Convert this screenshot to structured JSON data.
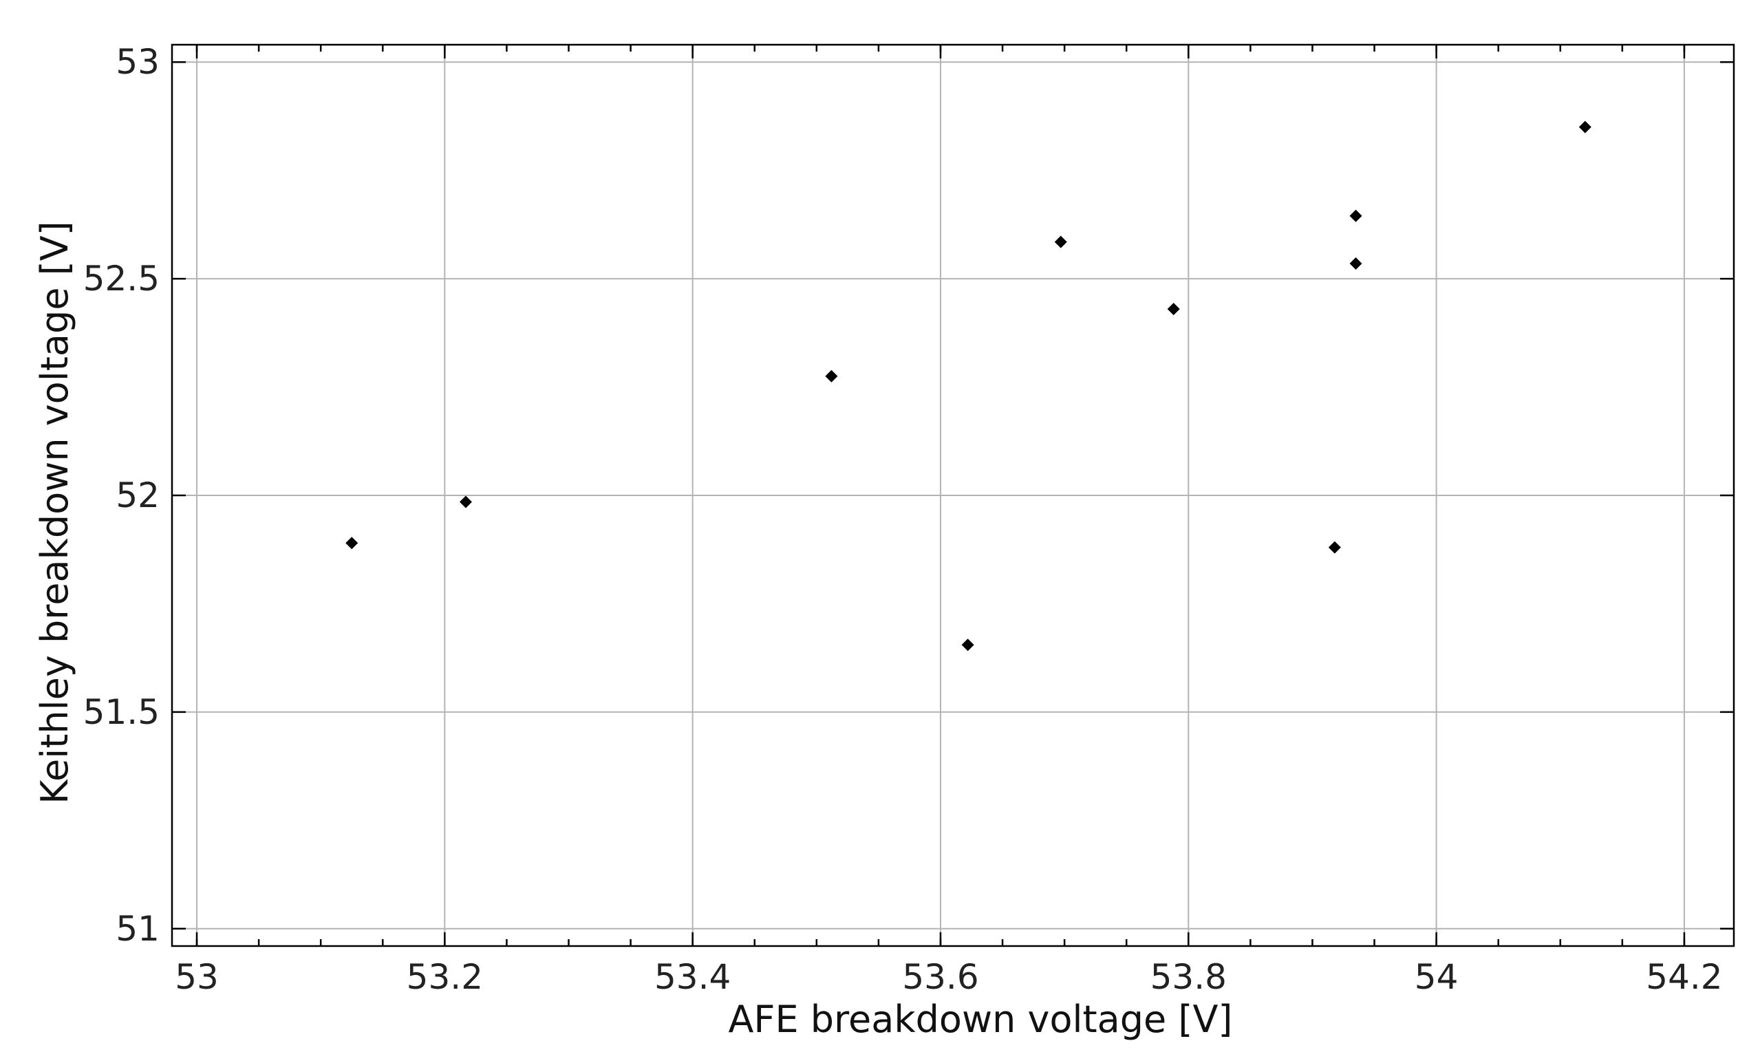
{
  "chart_data": {
    "type": "scatter",
    "title": "",
    "xlabel": "AFE breakdown voltage [V]",
    "ylabel": "Keithley breakdown voltage [V]",
    "xlim": [
      52.98,
      54.24
    ],
    "ylim": [
      50.96,
      53.04
    ],
    "x_ticks": [
      53,
      53.2,
      53.4,
      53.6,
      53.8,
      54,
      54.2
    ],
    "x_tick_labels": [
      "53",
      "53.2",
      "53.4",
      "53.6",
      "53.8",
      "54",
      "54.2"
    ],
    "y_ticks": [
      51,
      51.5,
      52,
      52.5,
      53
    ],
    "y_tick_labels": [
      "51",
      "51.5",
      "52",
      "52.5",
      "53"
    ],
    "grid": true,
    "marker": "diamond",
    "marker_color": "#000000",
    "series": [
      {
        "points": [
          {
            "x": 53.125,
            "y": 51.89
          },
          {
            "x": 53.217,
            "y": 51.985
          },
          {
            "x": 53.512,
            "y": 52.275
          },
          {
            "x": 53.622,
            "y": 51.655
          },
          {
            "x": 53.697,
            "y": 52.585
          },
          {
            "x": 53.788,
            "y": 52.43
          },
          {
            "x": 53.918,
            "y": 51.88
          },
          {
            "x": 53.935,
            "y": 52.645
          },
          {
            "x": 53.935,
            "y": 52.535
          },
          {
            "x": 54.12,
            "y": 52.85
          }
        ]
      }
    ]
  }
}
